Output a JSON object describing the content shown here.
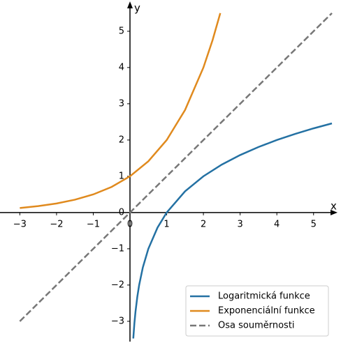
{
  "chart_data": {
    "type": "line",
    "xlabel": "x",
    "ylabel": "y",
    "xlim": [
      -3.54,
      5.5
    ],
    "ylim": [
      -3.56,
      5.67
    ],
    "xticks": [
      {
        "value": -3,
        "label": "−3"
      },
      {
        "value": -2,
        "label": "−2"
      },
      {
        "value": -1,
        "label": "−1"
      },
      0,
      1,
      2,
      3,
      4,
      5
    ],
    "yticks": [
      {
        "value": -3,
        "label": "−3"
      },
      {
        "value": -2,
        "label": "−2"
      },
      {
        "value": -1,
        "label": "−1"
      },
      0,
      1,
      2,
      3,
      4,
      5
    ],
    "grid": false,
    "legend": "lower right",
    "series": [
      {
        "name": "Logaritmická funkce",
        "color": "#2471a3",
        "dash": false,
        "x": [
          0.09,
          0.12,
          0.15,
          0.2,
          0.25,
          0.35,
          0.5,
          0.75,
          1,
          1.5,
          2,
          2.5,
          3,
          3.5,
          4,
          4.5,
          5,
          5.5
        ],
        "values": [
          -3.474,
          -3.059,
          -2.737,
          -2.322,
          -2,
          -1.515,
          -1,
          -0.415,
          0,
          0.585,
          1,
          1.322,
          1.585,
          1.807,
          2,
          2.17,
          2.322,
          2.459
        ]
      },
      {
        "name": "Exponenciální funkce",
        "color": "#e08a1e",
        "dash": false,
        "x": [
          -3,
          -2.5,
          -2,
          -1.5,
          -1,
          -0.5,
          0,
          0.5,
          1,
          1.5,
          2,
          2.25,
          2.46
        ],
        "values": [
          0.125,
          0.177,
          0.25,
          0.354,
          0.5,
          0.707,
          1,
          1.414,
          2,
          2.828,
          4,
          4.757,
          5.5
        ]
      },
      {
        "name": "Osa souměrnosti",
        "color": "#777777",
        "dash": true,
        "x": [
          -3,
          5.5
        ],
        "values": [
          -3,
          5.5
        ]
      }
    ]
  }
}
